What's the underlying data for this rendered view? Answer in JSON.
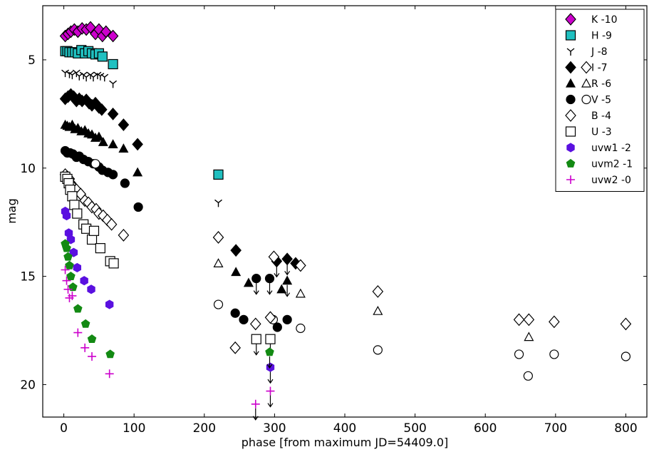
{
  "chart_data": {
    "type": "scatter",
    "xlabel": "phase [from maximum JD=54409.0]",
    "ylabel": "mag",
    "xlim": [
      -30,
      830
    ],
    "ylim": [
      21.5,
      2.5
    ],
    "x_ticks": [
      0,
      100,
      200,
      300,
      400,
      500,
      600,
      700,
      800
    ],
    "y_ticks": [
      5,
      10,
      15,
      20
    ],
    "legend_position": "top-right",
    "colors": {
      "K": "#cc00cc",
      "H": "#20c0c0",
      "uvw1": "#5a10e0",
      "uvm2": "#138a13",
      "uvw2": "#cc00cc"
    },
    "series": [
      {
        "name": "K -10",
        "marker": "diamond",
        "color": "#cc00cc",
        "points": [
          [
            2,
            3.9
          ],
          [
            6,
            3.8
          ],
          [
            10,
            3.7
          ],
          [
            15,
            3.6
          ],
          [
            20,
            3.7
          ],
          [
            26,
            3.55
          ],
          [
            32,
            3.6
          ],
          [
            38,
            3.5
          ],
          [
            45,
            3.8
          ],
          [
            50,
            3.6
          ],
          [
            55,
            3.9
          ],
          [
            60,
            3.7
          ],
          [
            70,
            3.9
          ]
        ]
      },
      {
        "name": "H -9",
        "marker": "square",
        "color": "#20c0c0",
        "points": [
          [
            2,
            4.6
          ],
          [
            5,
            4.6
          ],
          [
            8,
            4.65
          ],
          [
            12,
            4.65
          ],
          [
            16,
            4.65
          ],
          [
            20,
            4.7
          ],
          [
            25,
            4.55
          ],
          [
            30,
            4.7
          ],
          [
            35,
            4.6
          ],
          [
            40,
            4.7
          ],
          [
            45,
            4.75
          ],
          [
            50,
            4.7
          ],
          [
            55,
            4.85
          ],
          [
            70,
            5.2
          ],
          [
            220,
            10.3
          ]
        ]
      },
      {
        "name": "J -8",
        "marker": "tri_down",
        "color": "#000000",
        "points": [
          [
            2,
            5.6
          ],
          [
            8,
            5.65
          ],
          [
            12,
            5.7
          ],
          [
            18,
            5.6
          ],
          [
            22,
            5.75
          ],
          [
            28,
            5.7
          ],
          [
            32,
            5.8
          ],
          [
            38,
            5.7
          ],
          [
            42,
            5.8
          ],
          [
            48,
            5.7
          ],
          [
            52,
            5.75
          ],
          [
            58,
            5.8
          ],
          [
            70,
            6.1
          ],
          [
            220,
            11.6
          ]
        ]
      },
      {
        "name": "I -7",
        "marker": "diamond_filled",
        "color": "#000000",
        "points": [
          [
            2,
            6.8
          ],
          [
            6,
            6.7
          ],
          [
            10,
            6.6
          ],
          [
            14,
            6.7
          ],
          [
            18,
            6.9
          ],
          [
            22,
            6.8
          ],
          [
            26,
            6.9
          ],
          [
            32,
            6.85
          ],
          [
            36,
            7.0
          ],
          [
            40,
            7.1
          ],
          [
            45,
            7.0
          ],
          [
            50,
            7.2
          ],
          [
            54,
            7.3
          ],
          [
            70,
            7.5
          ],
          [
            85,
            8.0
          ],
          [
            105,
            8.9
          ],
          [
            245,
            13.8
          ],
          [
            330,
            14.4
          ]
        ]
      },
      {
        "name": "I -7 limit",
        "marker": "diamond_filled",
        "color": "#000000",
        "limit": true,
        "points": [
          [
            303,
            14.3
          ],
          [
            318,
            14.2
          ]
        ]
      },
      {
        "name": "I -7 open",
        "marker": "diamond",
        "color": "#000000",
        "points": [
          [
            220,
            13.2
          ],
          [
            299,
            14.1
          ],
          [
            337,
            14.5
          ],
          [
            447,
            15.7
          ],
          [
            648,
            17.0
          ],
          [
            662,
            17.0
          ],
          [
            698,
            17.1
          ],
          [
            800,
            17.2
          ]
        ]
      },
      {
        "name": "R -6",
        "marker": "triangle_filled",
        "color": "#000000",
        "points": [
          [
            2,
            8.0
          ],
          [
            5,
            8.05
          ],
          [
            8,
            8.1
          ],
          [
            12,
            8.0
          ],
          [
            16,
            8.2
          ],
          [
            20,
            8.15
          ],
          [
            25,
            8.3
          ],
          [
            30,
            8.25
          ],
          [
            35,
            8.4
          ],
          [
            40,
            8.45
          ],
          [
            45,
            8.6
          ],
          [
            50,
            8.55
          ],
          [
            56,
            8.8
          ],
          [
            70,
            8.9
          ],
          [
            85,
            9.1
          ],
          [
            105,
            10.2
          ],
          [
            245,
            14.8
          ],
          [
            263,
            15.3
          ],
          [
            310,
            15.6
          ]
        ]
      },
      {
        "name": "R -6 limit",
        "marker": "triangle_filled",
        "color": "#000000",
        "limit": true,
        "points": [
          [
            318,
            15.2
          ]
        ]
      },
      {
        "name": "R -6 open",
        "marker": "triangle",
        "color": "#000000",
        "points": [
          [
            220,
            14.4
          ],
          [
            337,
            15.8
          ],
          [
            447,
            16.6
          ],
          [
            662,
            17.8
          ]
        ]
      },
      {
        "name": "V -5",
        "marker": "circle_filled",
        "color": "#000000",
        "points": [
          [
            2,
            9.2
          ],
          [
            5,
            9.3
          ],
          [
            9,
            9.3
          ],
          [
            13,
            9.35
          ],
          [
            18,
            9.5
          ],
          [
            22,
            9.45
          ],
          [
            28,
            9.6
          ],
          [
            35,
            9.7
          ],
          [
            42,
            9.8
          ],
          [
            50,
            9.95
          ],
          [
            55,
            10.1
          ],
          [
            63,
            10.2
          ],
          [
            70,
            10.3
          ],
          [
            87,
            10.7
          ],
          [
            106,
            11.8
          ],
          [
            244,
            16.7
          ],
          [
            256,
            17.0
          ],
          [
            304,
            17.35
          ],
          [
            318,
            17.0
          ]
        ]
      },
      {
        "name": "V -5 limit",
        "marker": "circle_filled",
        "color": "#000000",
        "limit": true,
        "points": [
          [
            274,
            15.1
          ],
          [
            293,
            15.1
          ]
        ]
      },
      {
        "name": "V -5 open",
        "marker": "circle",
        "color": "#000000",
        "points": [
          [
            45,
            9.8
          ],
          [
            220,
            16.3
          ],
          [
            298,
            17.0
          ],
          [
            337,
            17.4
          ],
          [
            447,
            18.4
          ],
          [
            648,
            18.6
          ],
          [
            661,
            19.6
          ],
          [
            698,
            18.6
          ],
          [
            800,
            18.7
          ]
        ]
      },
      {
        "name": "B -4",
        "marker": "diamond",
        "color": "#000000",
        "points": [
          [
            2,
            10.3
          ],
          [
            5,
            10.4
          ],
          [
            8,
            10.5
          ],
          [
            10,
            10.7
          ],
          [
            14,
            10.9
          ],
          [
            18,
            11.0
          ],
          [
            24,
            11.2
          ],
          [
            30,
            11.5
          ],
          [
            35,
            11.6
          ],
          [
            40,
            11.8
          ],
          [
            46,
            11.9
          ],
          [
            50,
            12.1
          ],
          [
            56,
            12.2
          ],
          [
            62,
            12.4
          ],
          [
            68,
            12.6
          ],
          [
            85,
            13.1
          ],
          [
            244,
            18.3
          ],
          [
            273,
            17.2
          ],
          [
            294,
            16.9
          ]
        ]
      },
      {
        "name": "U -3",
        "marker": "square",
        "color": "#000000",
        "points": [
          [
            2,
            10.4
          ],
          [
            5,
            10.5
          ],
          [
            7,
            10.7
          ],
          [
            9,
            11.0
          ],
          [
            12,
            11.3
          ],
          [
            15,
            11.7
          ],
          [
            19,
            12.1
          ],
          [
            28,
            12.6
          ],
          [
            32,
            12.8
          ],
          [
            40,
            13.3
          ],
          [
            43,
            12.9
          ],
          [
            52,
            13.7
          ],
          [
            66,
            14.3
          ],
          [
            71,
            14.4
          ]
        ]
      },
      {
        "name": "U -3 limit",
        "marker": "square",
        "color": "#000000",
        "limit": true,
        "points": [
          [
            274,
            17.9
          ],
          [
            294,
            17.9
          ]
        ]
      },
      {
        "name": "uvw1 -2",
        "marker": "hexagon",
        "color": "#5a10e0",
        "points": [
          [
            2,
            12.0
          ],
          [
            4,
            12.2
          ],
          [
            7,
            13.0
          ],
          [
            10,
            13.3
          ],
          [
            14,
            13.9
          ],
          [
            19,
            14.6
          ],
          [
            29,
            15.2
          ],
          [
            39,
            15.6
          ],
          [
            65,
            16.3
          ]
        ]
      },
      {
        "name": "uvw1 -2 limit",
        "marker": "hexagon",
        "color": "#5a10e0",
        "limit": true,
        "points": [
          [
            294,
            19.2
          ]
        ]
      },
      {
        "name": "uvm2 -1",
        "marker": "pentagon",
        "color": "#138a13",
        "points": [
          [
            2,
            13.5
          ],
          [
            4,
            13.7
          ],
          [
            6,
            14.1
          ],
          [
            8,
            14.5
          ],
          [
            10,
            15.0
          ],
          [
            13,
            15.5
          ],
          [
            20,
            16.5
          ],
          [
            31,
            17.2
          ],
          [
            40,
            17.9
          ],
          [
            66,
            18.6
          ]
        ]
      },
      {
        "name": "uvm2 -1 limit",
        "marker": "pentagon",
        "color": "#138a13",
        "limit": true,
        "points": [
          [
            293,
            18.5
          ]
        ]
      },
      {
        "name": "uvw2 -0",
        "marker": "plus",
        "color": "#cc00cc",
        "points": [
          [
            2,
            14.7
          ],
          [
            4,
            15.2
          ],
          [
            6,
            15.6
          ],
          [
            8,
            16.0
          ],
          [
            12,
            15.9
          ],
          [
            20,
            17.6
          ],
          [
            30,
            18.3
          ],
          [
            40,
            18.7
          ],
          [
            65,
            19.5
          ]
        ]
      },
      {
        "name": "uvw2 -0 limit",
        "marker": "plus",
        "color": "#cc00cc",
        "limit": true,
        "points": [
          [
            273,
            20.9
          ],
          [
            294,
            20.3
          ]
        ]
      }
    ],
    "legend": [
      {
        "label": "K -10",
        "markers": [
          "diamond:#cc00cc"
        ]
      },
      {
        "label": "H -9",
        "markers": [
          "square:#20c0c0"
        ]
      },
      {
        "label": "J -8",
        "markers": [
          "tri_down:#000000"
        ]
      },
      {
        "label": "I -7",
        "markers": [
          "diamond_filled:#000000",
          "diamond:#000000"
        ]
      },
      {
        "label": "R -6",
        "markers": [
          "triangle_filled:#000000",
          "triangle:#000000"
        ]
      },
      {
        "label": "V -5",
        "markers": [
          "circle_filled:#000000",
          "circle:#000000"
        ]
      },
      {
        "label": "B -4",
        "markers": [
          "diamond:#000000"
        ]
      },
      {
        "label": "U -3",
        "markers": [
          "square:#000000"
        ]
      },
      {
        "label": "uvw1 -2",
        "markers": [
          "hexagon:#5a10e0"
        ]
      },
      {
        "label": "uvm2 -1",
        "markers": [
          "pentagon:#138a13"
        ]
      },
      {
        "label": "uvw2 -0",
        "markers": [
          "plus:#cc00cc"
        ]
      }
    ]
  }
}
